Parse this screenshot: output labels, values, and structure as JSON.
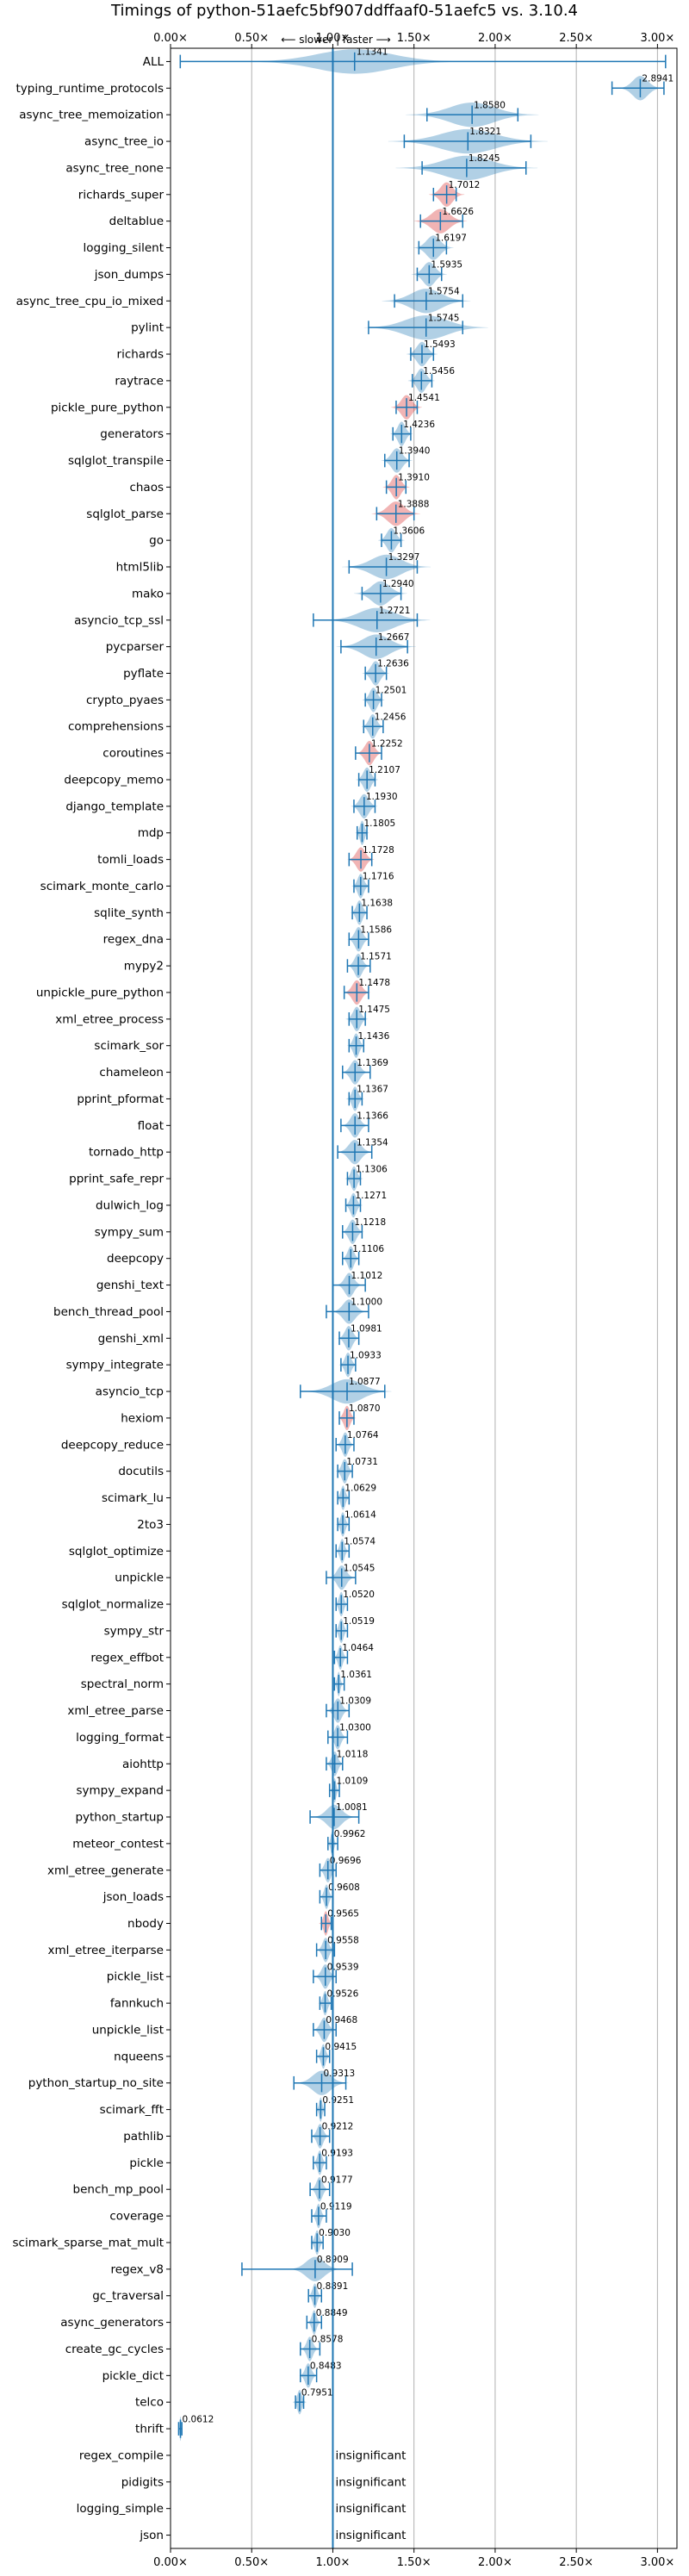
{
  "chart_data": {
    "type": "violin",
    "title": "Timings of python-51aefc5bf907ddffaaf0-51aefc5 vs. 3.10.4",
    "direction_label": "⟵ slower | faster ⟶",
    "xlim": [
      0.0,
      3.12
    ],
    "xticks": [
      {
        "value": 0.0,
        "label": "0.00×"
      },
      {
        "value": 0.5,
        "label": "0.50×"
      },
      {
        "value": 1.0,
        "label": "1.00×"
      },
      {
        "value": 1.5,
        "label": "1.50×"
      },
      {
        "value": 2.0,
        "label": "2.00×"
      },
      {
        "value": 2.5,
        "label": "2.50×"
      },
      {
        "value": 3.0,
        "label": "3.00×"
      }
    ],
    "reference_value": 1.0,
    "insignificant_label": "insignificant",
    "colors": {
      "normal": "#1f77b4",
      "regression": "#d62728",
      "reference": "#1f77b4"
    },
    "benchmarks": [
      {
        "name": "ALL",
        "value": 1.1341,
        "label": "1.1341",
        "min": 0.06,
        "max": 3.05,
        "spread": 0.5,
        "regression": false
      },
      {
        "name": "typing_runtime_protocols",
        "value": 2.8941,
        "label": "2.8941",
        "min": 2.72,
        "max": 3.04,
        "spread": 0.1,
        "regression": false
      },
      {
        "name": "async_tree_memoization",
        "value": 1.858,
        "label": "1.8580",
        "min": 1.58,
        "max": 2.14,
        "spread": 0.3,
        "regression": false
      },
      {
        "name": "async_tree_io",
        "value": 1.8321,
        "label": "1.8321",
        "min": 1.44,
        "max": 2.22,
        "spread": 0.36,
        "regression": false
      },
      {
        "name": "async_tree_none",
        "value": 1.8245,
        "label": "1.8245",
        "min": 1.55,
        "max": 2.19,
        "spread": 0.32,
        "regression": false
      },
      {
        "name": "richards_super",
        "value": 1.7012,
        "label": "1.7012",
        "min": 1.62,
        "max": 1.76,
        "spread": 0.08,
        "regression": true
      },
      {
        "name": "deltablue",
        "value": 1.6626,
        "label": "1.6626",
        "min": 1.54,
        "max": 1.8,
        "spread": 0.12,
        "regression": true
      },
      {
        "name": "logging_silent",
        "value": 1.6197,
        "label": "1.6197",
        "min": 1.53,
        "max": 1.7,
        "spread": 0.09,
        "regression": false
      },
      {
        "name": "json_dumps",
        "value": 1.5935,
        "label": "1.5935",
        "min": 1.52,
        "max": 1.67,
        "spread": 0.08,
        "regression": false
      },
      {
        "name": "async_tree_cpu_io_mixed",
        "value": 1.5754,
        "label": "1.5754",
        "min": 1.38,
        "max": 1.8,
        "spread": 0.2,
        "regression": false
      },
      {
        "name": "pylint",
        "value": 1.5745,
        "label": "1.5745",
        "min": 1.22,
        "max": 1.8,
        "spread": 0.28,
        "regression": false
      },
      {
        "name": "richards",
        "value": 1.5493,
        "label": "1.5493",
        "min": 1.48,
        "max": 1.62,
        "spread": 0.07,
        "regression": false
      },
      {
        "name": "raytrace",
        "value": 1.5456,
        "label": "1.5456",
        "min": 1.49,
        "max": 1.61,
        "spread": 0.06,
        "regression": false
      },
      {
        "name": "pickle_pure_python",
        "value": 1.4541,
        "label": "1.4541",
        "min": 1.39,
        "max": 1.52,
        "spread": 0.07,
        "regression": true
      },
      {
        "name": "generators",
        "value": 1.4236,
        "label": "1.4236",
        "min": 1.37,
        "max": 1.48,
        "spread": 0.05,
        "regression": false
      },
      {
        "name": "sqlglot_transpile",
        "value": 1.394,
        "label": "1.3940",
        "min": 1.32,
        "max": 1.47,
        "spread": 0.07,
        "regression": false
      },
      {
        "name": "chaos",
        "value": 1.391,
        "label": "1.3910",
        "min": 1.33,
        "max": 1.45,
        "spread": 0.06,
        "regression": true
      },
      {
        "name": "sqlglot_parse",
        "value": 1.3888,
        "label": "1.3888",
        "min": 1.27,
        "max": 1.5,
        "spread": 0.11,
        "regression": true
      },
      {
        "name": "go",
        "value": 1.3606,
        "label": "1.3606",
        "min": 1.3,
        "max": 1.42,
        "spread": 0.06,
        "regression": false
      },
      {
        "name": "html5lib",
        "value": 1.3297,
        "label": "1.3297",
        "min": 1.1,
        "max": 1.52,
        "spread": 0.2,
        "regression": false
      },
      {
        "name": "mako",
        "value": 1.294,
        "label": "1.2940",
        "min": 1.18,
        "max": 1.42,
        "spread": 0.12,
        "regression": false
      },
      {
        "name": "asyncio_tcp_ssl",
        "value": 1.2721,
        "label": "1.2721",
        "min": 0.88,
        "max": 1.52,
        "spread": 0.24,
        "regression": false
      },
      {
        "name": "pycparser",
        "value": 1.2667,
        "label": "1.2667",
        "min": 1.05,
        "max": 1.46,
        "spread": 0.18,
        "regression": false
      },
      {
        "name": "pyflate",
        "value": 1.2636,
        "label": "1.2636",
        "min": 1.2,
        "max": 1.33,
        "spread": 0.06,
        "regression": false
      },
      {
        "name": "crypto_pyaes",
        "value": 1.2501,
        "label": "1.2501",
        "min": 1.2,
        "max": 1.3,
        "spread": 0.05,
        "regression": false
      },
      {
        "name": "comprehensions",
        "value": 1.2456,
        "label": "1.2456",
        "min": 1.19,
        "max": 1.31,
        "spread": 0.05,
        "regression": false
      },
      {
        "name": "coroutines",
        "value": 1.2252,
        "label": "1.2252",
        "min": 1.14,
        "max": 1.3,
        "spread": 0.06,
        "regression": true
      },
      {
        "name": "deepcopy_memo",
        "value": 1.2107,
        "label": "1.2107",
        "min": 1.16,
        "max": 1.26,
        "spread": 0.05,
        "regression": false
      },
      {
        "name": "django_template",
        "value": 1.193,
        "label": "1.1930",
        "min": 1.13,
        "max": 1.26,
        "spread": 0.06,
        "regression": false
      },
      {
        "name": "mdp",
        "value": 1.1805,
        "label": "1.1805",
        "min": 1.15,
        "max": 1.21,
        "spread": 0.03,
        "regression": false
      },
      {
        "name": "tomli_loads",
        "value": 1.1728,
        "label": "1.1728",
        "min": 1.1,
        "max": 1.24,
        "spread": 0.06,
        "regression": true
      },
      {
        "name": "scimark_monte_carlo",
        "value": 1.1716,
        "label": "1.1716",
        "min": 1.13,
        "max": 1.22,
        "spread": 0.04,
        "regression": false
      },
      {
        "name": "sqlite_synth",
        "value": 1.1638,
        "label": "1.1638",
        "min": 1.12,
        "max": 1.21,
        "spread": 0.04,
        "regression": false
      },
      {
        "name": "regex_dna",
        "value": 1.1586,
        "label": "1.1586",
        "min": 1.1,
        "max": 1.22,
        "spread": 0.05,
        "regression": false
      },
      {
        "name": "mypy2",
        "value": 1.1571,
        "label": "1.1571",
        "min": 1.09,
        "max": 1.23,
        "spread": 0.05,
        "regression": false
      },
      {
        "name": "unpickle_pure_python",
        "value": 1.1478,
        "label": "1.1478",
        "min": 1.07,
        "max": 1.22,
        "spread": 0.06,
        "regression": true
      },
      {
        "name": "xml_etree_process",
        "value": 1.1475,
        "label": "1.1475",
        "min": 1.1,
        "max": 1.2,
        "spread": 0.05,
        "regression": false
      },
      {
        "name": "scimark_sor",
        "value": 1.1436,
        "label": "1.1436",
        "min": 1.1,
        "max": 1.19,
        "spread": 0.04,
        "regression": false
      },
      {
        "name": "chameleon",
        "value": 1.1369,
        "label": "1.1369",
        "min": 1.06,
        "max": 1.23,
        "spread": 0.06,
        "regression": false
      },
      {
        "name": "pprint_pformat",
        "value": 1.1367,
        "label": "1.1367",
        "min": 1.1,
        "max": 1.18,
        "spread": 0.04,
        "regression": false
      },
      {
        "name": "float",
        "value": 1.1366,
        "label": "1.1366",
        "min": 1.05,
        "max": 1.22,
        "spread": 0.06,
        "regression": false
      },
      {
        "name": "tornado_http",
        "value": 1.1354,
        "label": "1.1354",
        "min": 1.03,
        "max": 1.24,
        "spread": 0.08,
        "regression": false
      },
      {
        "name": "pprint_safe_repr",
        "value": 1.1306,
        "label": "1.1306",
        "min": 1.09,
        "max": 1.17,
        "spread": 0.04,
        "regression": false
      },
      {
        "name": "dulwich_log",
        "value": 1.1271,
        "label": "1.1271",
        "min": 1.08,
        "max": 1.17,
        "spread": 0.04,
        "regression": false
      },
      {
        "name": "sympy_sum",
        "value": 1.1218,
        "label": "1.1218",
        "min": 1.06,
        "max": 1.18,
        "spread": 0.05,
        "regression": false
      },
      {
        "name": "deepcopy",
        "value": 1.1106,
        "label": "1.1106",
        "min": 1.06,
        "max": 1.16,
        "spread": 0.04,
        "regression": false
      },
      {
        "name": "genshi_text",
        "value": 1.1012,
        "label": "1.1012",
        "min": 1.0,
        "max": 1.2,
        "spread": 0.06,
        "regression": false
      },
      {
        "name": "bench_thread_pool",
        "value": 1.1,
        "label": "1.1000",
        "min": 0.96,
        "max": 1.22,
        "spread": 0.08,
        "regression": false
      },
      {
        "name": "genshi_xml",
        "value": 1.0981,
        "label": "1.0981",
        "min": 1.04,
        "max": 1.16,
        "spread": 0.05,
        "regression": false
      },
      {
        "name": "sympy_integrate",
        "value": 1.0933,
        "label": "1.0933",
        "min": 1.05,
        "max": 1.14,
        "spread": 0.04,
        "regression": false
      },
      {
        "name": "asyncio_tcp",
        "value": 1.0877,
        "label": "1.0877",
        "min": 0.8,
        "max": 1.32,
        "spread": 0.2,
        "regression": false
      },
      {
        "name": "hexiom",
        "value": 1.087,
        "label": "1.0870",
        "min": 1.04,
        "max": 1.13,
        "spread": 0.04,
        "regression": true
      },
      {
        "name": "deepcopy_reduce",
        "value": 1.0764,
        "label": "1.0764",
        "min": 1.02,
        "max": 1.13,
        "spread": 0.04,
        "regression": false
      },
      {
        "name": "docutils",
        "value": 1.0731,
        "label": "1.0731",
        "min": 1.03,
        "max": 1.12,
        "spread": 0.04,
        "regression": false
      },
      {
        "name": "scimark_lu",
        "value": 1.0629,
        "label": "1.0629",
        "min": 1.03,
        "max": 1.1,
        "spread": 0.03,
        "regression": false
      },
      {
        "name": "2to3",
        "value": 1.0614,
        "label": "1.0614",
        "min": 1.03,
        "max": 1.1,
        "spread": 0.03,
        "regression": false
      },
      {
        "name": "sqlglot_optimize",
        "value": 1.0574,
        "label": "1.0574",
        "min": 1.02,
        "max": 1.1,
        "spread": 0.03,
        "regression": false
      },
      {
        "name": "unpickle",
        "value": 1.0545,
        "label": "1.0545",
        "min": 0.96,
        "max": 1.14,
        "spread": 0.06,
        "regression": false
      },
      {
        "name": "sqlglot_normalize",
        "value": 1.052,
        "label": "1.0520",
        "min": 1.02,
        "max": 1.09,
        "spread": 0.03,
        "regression": false
      },
      {
        "name": "sympy_str",
        "value": 1.0519,
        "label": "1.0519",
        "min": 1.02,
        "max": 1.09,
        "spread": 0.03,
        "regression": false
      },
      {
        "name": "regex_effbot",
        "value": 1.0464,
        "label": "1.0464",
        "min": 1.01,
        "max": 1.09,
        "spread": 0.03,
        "regression": false
      },
      {
        "name": "spectral_norm",
        "value": 1.0361,
        "label": "1.0361",
        "min": 1.01,
        "max": 1.07,
        "spread": 0.02,
        "regression": false
      },
      {
        "name": "xml_etree_parse",
        "value": 1.0309,
        "label": "1.0309",
        "min": 0.96,
        "max": 1.1,
        "spread": 0.05,
        "regression": false
      },
      {
        "name": "logging_format",
        "value": 1.03,
        "label": "1.0300",
        "min": 0.97,
        "max": 1.09,
        "spread": 0.04,
        "regression": false
      },
      {
        "name": "aiohttp",
        "value": 1.0118,
        "label": "1.0118",
        "min": 0.96,
        "max": 1.06,
        "spread": 0.04,
        "regression": false
      },
      {
        "name": "sympy_expand",
        "value": 1.0109,
        "label": "1.0109",
        "min": 0.98,
        "max": 1.04,
        "spread": 0.02,
        "regression": false
      },
      {
        "name": "python_startup",
        "value": 1.0081,
        "label": "1.0081",
        "min": 0.86,
        "max": 1.16,
        "spread": 0.1,
        "regression": false
      },
      {
        "name": "meteor_contest",
        "value": 0.9962,
        "label": "0.9962",
        "min": 0.97,
        "max": 1.03,
        "spread": 0.02,
        "regression": false
      },
      {
        "name": "xml_etree_generate",
        "value": 0.9696,
        "label": "0.9696",
        "min": 0.92,
        "max": 1.02,
        "spread": 0.04,
        "regression": false
      },
      {
        "name": "json_loads",
        "value": 0.9608,
        "label": "0.9608",
        "min": 0.92,
        "max": 1.0,
        "spread": 0.03,
        "regression": false
      },
      {
        "name": "nbody",
        "value": 0.9565,
        "label": "0.9565",
        "min": 0.93,
        "max": 0.99,
        "spread": 0.03,
        "regression": true
      },
      {
        "name": "xml_etree_iterparse",
        "value": 0.9558,
        "label": "0.9558",
        "min": 0.9,
        "max": 1.01,
        "spread": 0.04,
        "regression": false
      },
      {
        "name": "pickle_list",
        "value": 0.9539,
        "label": "0.9539",
        "min": 0.88,
        "max": 1.02,
        "spread": 0.05,
        "regression": false
      },
      {
        "name": "fannkuch",
        "value": 0.9526,
        "label": "0.9526",
        "min": 0.92,
        "max": 0.99,
        "spread": 0.03,
        "regression": false
      },
      {
        "name": "unpickle_list",
        "value": 0.9468,
        "label": "0.9468",
        "min": 0.88,
        "max": 1.02,
        "spread": 0.05,
        "regression": false
      },
      {
        "name": "nqueens",
        "value": 0.9415,
        "label": "0.9415",
        "min": 0.9,
        "max": 0.98,
        "spread": 0.03,
        "regression": false
      },
      {
        "name": "python_startup_no_site",
        "value": 0.9313,
        "label": "0.9313",
        "min": 0.76,
        "max": 1.08,
        "spread": 0.12,
        "regression": false
      },
      {
        "name": "scimark_fft",
        "value": 0.9251,
        "label": "0.9251",
        "min": 0.9,
        "max": 0.95,
        "spread": 0.02,
        "regression": false
      },
      {
        "name": "pathlib",
        "value": 0.9212,
        "label": "0.9212",
        "min": 0.87,
        "max": 0.98,
        "spread": 0.04,
        "regression": false
      },
      {
        "name": "pickle",
        "value": 0.9193,
        "label": "0.9193",
        "min": 0.88,
        "max": 0.96,
        "spread": 0.03,
        "regression": false
      },
      {
        "name": "bench_mp_pool",
        "value": 0.9177,
        "label": "0.9177",
        "min": 0.86,
        "max": 0.98,
        "spread": 0.04,
        "regression": false
      },
      {
        "name": "coverage",
        "value": 0.9119,
        "label": "0.9119",
        "min": 0.87,
        "max": 0.96,
        "spread": 0.03,
        "regression": false
      },
      {
        "name": "scimark_sparse_mat_mult",
        "value": 0.903,
        "label": "0.9030",
        "min": 0.87,
        "max": 0.94,
        "spread": 0.03,
        "regression": false
      },
      {
        "name": "regex_v8",
        "value": 0.8909,
        "label": "0.8909",
        "min": 0.44,
        "max": 1.12,
        "spread": 0.12,
        "regression": false
      },
      {
        "name": "gc_traversal",
        "value": 0.8891,
        "label": "0.8891",
        "min": 0.85,
        "max": 0.93,
        "spread": 0.03,
        "regression": false
      },
      {
        "name": "async_generators",
        "value": 0.8849,
        "label": "0.8849",
        "min": 0.84,
        "max": 0.93,
        "spread": 0.03,
        "regression": false
      },
      {
        "name": "create_gc_cycles",
        "value": 0.8578,
        "label": "0.8578",
        "min": 0.8,
        "max": 0.92,
        "spread": 0.04,
        "regression": false
      },
      {
        "name": "pickle_dict",
        "value": 0.8483,
        "label": "0.8483",
        "min": 0.8,
        "max": 0.9,
        "spread": 0.04,
        "regression": false
      },
      {
        "name": "telco",
        "value": 0.7951,
        "label": "0.7951",
        "min": 0.77,
        "max": 0.82,
        "spread": 0.03,
        "regression": false
      },
      {
        "name": "thrift",
        "value": 0.0612,
        "label": "0.0612",
        "min": 0.05,
        "max": 0.07,
        "spread": 0.01,
        "regression": false
      },
      {
        "name": "regex_compile",
        "value": null,
        "label": "",
        "insignificant": true
      },
      {
        "name": "pidigits",
        "value": null,
        "label": "",
        "insignificant": true
      },
      {
        "name": "logging_simple",
        "value": null,
        "label": "",
        "insignificant": true
      },
      {
        "name": "json",
        "value": null,
        "label": "",
        "insignificant": true
      }
    ]
  }
}
